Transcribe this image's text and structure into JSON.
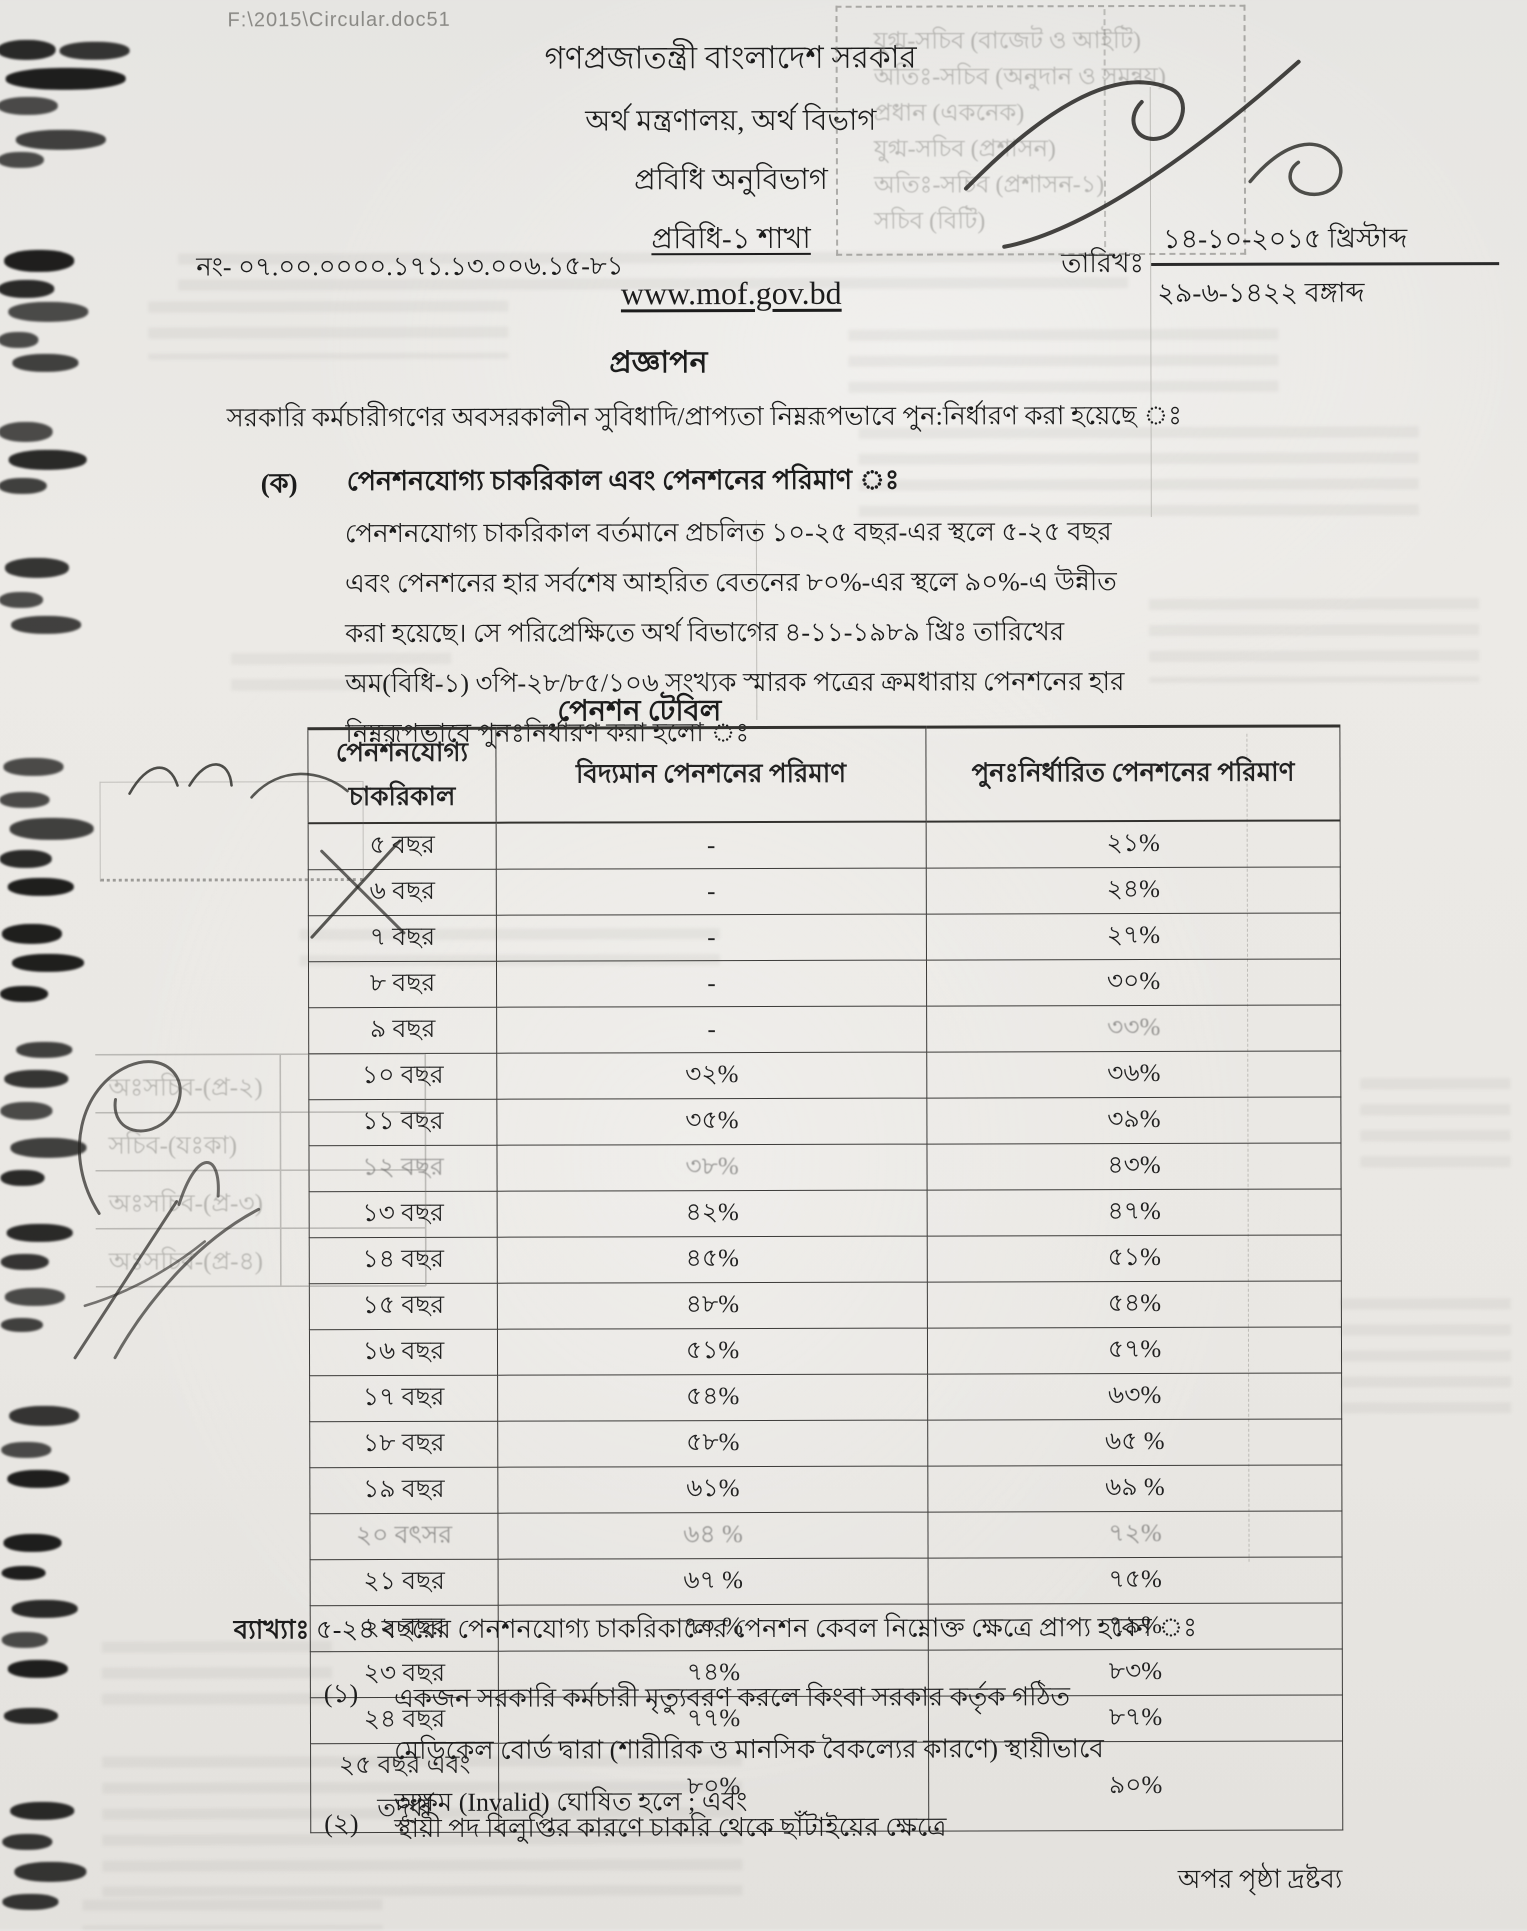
{
  "doc": {
    "file_ref": "F:\\2015\\Circular.doc51",
    "header": {
      "line1": "গণপ্রজাতন্ত্রী বাংলাদেশ সরকার",
      "line2": "অর্থ মন্ত্রণালয়, অর্থ বিভাগ",
      "line3": "প্রবিধি অনুবিভাগ",
      "line4": "প্রবিধি-১ শাখা",
      "website": "www.mof.gov.bd"
    },
    "memo": {
      "label": "নং-",
      "number": "০৭.০০.০০০০.১৭১.১৩.০০৬.১৫-৮১"
    },
    "date": {
      "label": "তারিখঃ",
      "gregorian": "১৪-১০-২০১৫ খ্রিস্টাব্দ",
      "bangla": "২৯-৬-১৪২২ বঙ্গাব্দ"
    },
    "notification_title": "প্রজ্ঞাপন",
    "intro": "সরকারি কর্মচারীগণের অবসরকালীন সুবিধাদি/প্রাপ্যতা নিম্নরূপভাবে পুন:নির্ধারণ করা হয়েছে ঃ",
    "section_ka": {
      "label": "(ক)",
      "title": "পেনশনযোগ্য চাকরিকাল এবং পেনশনের পরিমাণ ঃ",
      "body": "পেনশনযোগ্য চাকরিকাল বর্তমানে প্রচলিত ১০-২৫ বছর-এর স্থলে ৫-২৫ বছর এবং পেনশনের হার সর্বশেষ আহরিত বেতনের ৮০%-এর স্থলে ৯০%-এ উন্নীত করা হয়েছে। সে পরিপ্রেক্ষিতে অর্থ বিভাগের ৪-১১-১৯৮৯ খ্রিঃ তারিখের অম(বিধি-১) ৩পি-২৮/৮৫/১০৬ সংখ্যক স্মারক পত্রের ক্রমধারায় পেনশনের হার নিম্নরূপভাবে পুনঃনির্ধারণ করা হলো ঃ"
    },
    "table_title": "পেনশন টেবিল",
    "explanation": {
      "label": "ব্যাখ্যাঃ",
      "text": "৫-২৪ বছরের পেনশনযোগ্য চাকরিকালের পেনশন কেবল নিম্নোক্ত ক্ষেত্রে প্রাপ্য হবেন ঃ"
    },
    "clauses": [
      {
        "num": "(১)",
        "text": "একজন সরকারি কর্মচারী মৃত্যুবরণ করলে কিংবা সরকার কর্তৃক গঠিত মেডিকেল বোর্ড দ্বারা (শারীরিক ও মানসিক বৈকল্যের কারণে) স্থায়ীভাবে অক্ষম (Invalid) ঘোষিত হলে ; এবং"
      },
      {
        "num": "(২)",
        "text": "স্থায়ী পদ বিলুপ্তির কারণে চাকরি থেকে ছাঁটাইয়ের ক্ষেত্রে"
      }
    ],
    "footer_note": "অপর পৃষ্ঠা দ্রষ্টব্য"
  },
  "pension_table": {
    "headers": [
      "পেনশনযোগ্য চাকরিকাল",
      "বিদ্যমান পেনশনের পরিমাণ",
      "পুনঃনির্ধারিত পেনশনের পরিমাণ"
    ],
    "rows": [
      [
        "৫ বছর",
        "-",
        "২১%"
      ],
      [
        "৬ বছর",
        "-",
        "২৪%"
      ],
      [
        "৭ বছর",
        "-",
        "২৭%"
      ],
      [
        "৮ বছর",
        "-",
        "৩০%"
      ],
      [
        "৯ বছর",
        "-",
        "৩৩%"
      ],
      [
        "১০ বছর",
        "৩২%",
        "৩৬%"
      ],
      [
        "১১ বছর",
        "৩৫%",
        "৩৯%"
      ],
      [
        "১২ বছর",
        "৩৮%",
        "৪৩%"
      ],
      [
        "১৩ বছর",
        "৪২%",
        "৪৭%"
      ],
      [
        "১৪ বছর",
        "৪৫%",
        "৫১%"
      ],
      [
        "১৫ বছর",
        "৪৮%",
        "৫৪%"
      ],
      [
        "১৬ বছর",
        "৫১%",
        "৫৭%"
      ],
      [
        "১৭ বছর",
        "৫৪%",
        "৬৩%"
      ],
      [
        "১৮ বছর",
        "৫৮%",
        "৬৫ %"
      ],
      [
        "১৯ বছর",
        "৬১%",
        "৬৯ %"
      ],
      [
        "২০ বৎসর",
        "৬৪ %",
        "৭২%"
      ],
      [
        "২১ বছর",
        "৬৭ %",
        "৭৫%"
      ],
      [
        "২২ বছর",
        "৭০ %",
        "৭৯%"
      ],
      [
        "২৩ বছর",
        "৭৪%",
        "৮৩%"
      ],
      [
        "২৪ বছর",
        "৭৭%",
        "৮৭%"
      ],
      [
        "২৫ বছর এবং তদূর্ধ্ব",
        "৮০%",
        "৯০%"
      ]
    ]
  },
  "artifacts": {
    "ghost_officials": [
      "যুগ্ম-সচিব (বাজেট ও আইটি)",
      "অতিঃ-সচিব (অনুদান ও সমন্বয়)",
      "প্রধান (একনেক)",
      "যুগ্ম-সচিব (প্রশাসন)",
      "অতিঃ-সচিব (প্রশাসন-১)",
      "সচিব (বিটি)"
    ],
    "ghost_stamps": [
      "অঃসচিব-(প্র-২)",
      "সচিব-(যঃকা)",
      "অঃসচিব-(প্র-৩)",
      "অঃসচিব-(প্র-৪)"
    ]
  }
}
